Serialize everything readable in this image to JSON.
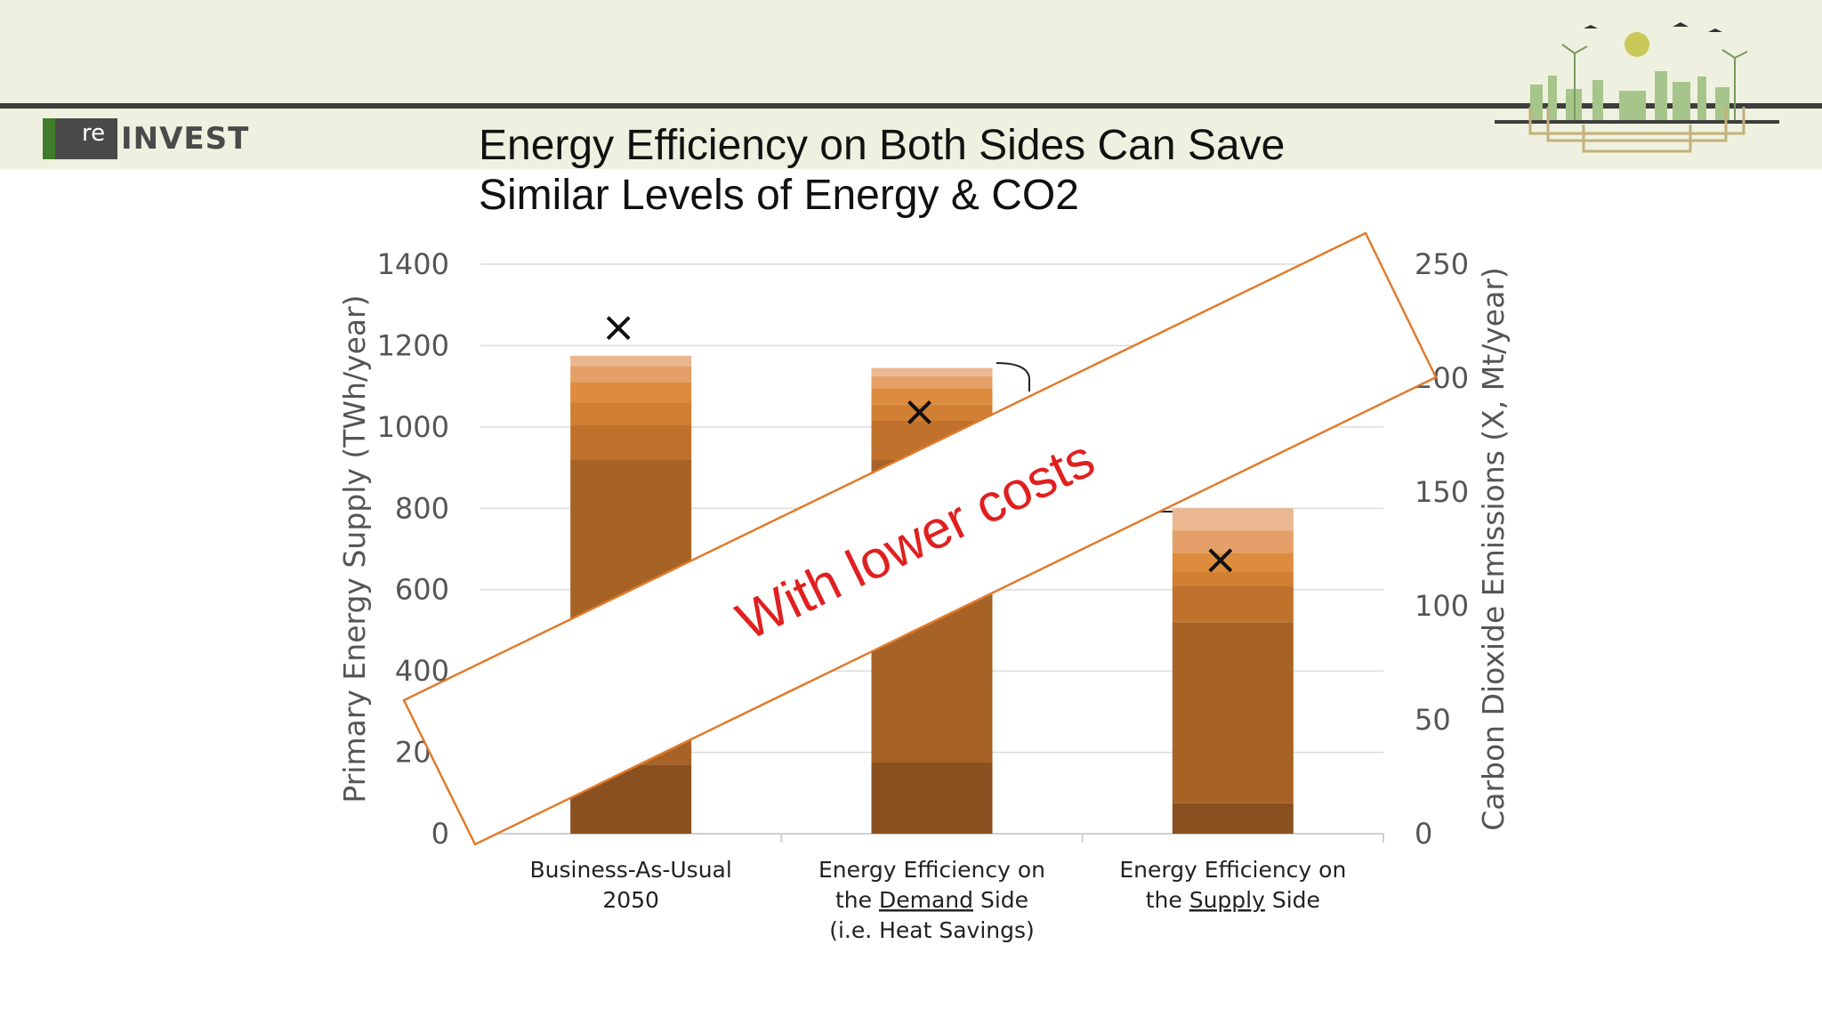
{
  "slide": {
    "title_line1": "Energy Efficiency on Both Sides Can Save",
    "title_line2": "Similar Levels of Energy & CO2",
    "logo_badge": "re",
    "logo_word": "INVEST",
    "overlay_text": "With lower costs"
  },
  "colors": {
    "header_band": "#eef1df",
    "overlay_border": "#e07b2c",
    "overlay_text": "#e02020",
    "marker": "#111111"
  },
  "chart_data": {
    "type": "bar",
    "stacked": true,
    "title": "",
    "categories": [
      [
        "Business-As-Usual",
        "2050"
      ],
      [
        "Energy Efficiency on",
        "the Demand Side",
        "(i.e. Heat Savings)"
      ],
      [
        "Energy Efficiency on",
        "the Supply Side"
      ]
    ],
    "category_underlined_words": [
      "",
      "Demand",
      "Supply"
    ],
    "ylabel": "Primary Energy Supply (TWh/year)",
    "y2label": "Carbon Dioxide Emissions (X, Mt/year)",
    "ylim": [
      0,
      1400
    ],
    "y2lim": [
      0,
      250
    ],
    "yticks": [
      "0",
      "200",
      "400",
      "600",
      "800",
      "1000",
      "1200",
      "1400"
    ],
    "y2ticks": [
      "0",
      "50",
      "100",
      "150",
      "200",
      "250"
    ],
    "grid": true,
    "series": [
      {
        "color": "#8a5020",
        "values": [
          170,
          175,
          75
        ]
      },
      {
        "color": "#a76325",
        "values": [
          750,
          745,
          445
        ]
      },
      {
        "color": "#c0712c",
        "values": [
          85,
          95,
          90
        ]
      },
      {
        "color": "#d17f32",
        "values": [
          55,
          40,
          35
        ]
      },
      {
        "color": "#dc8c3c",
        "values": [
          50,
          40,
          45
        ]
      },
      {
        "color": "#e4a068",
        "values": [
          40,
          30,
          55
        ]
      },
      {
        "color": "#eab791",
        "values": [
          25,
          20,
          55
        ]
      }
    ],
    "co2_markers": [
      222,
      185,
      120
    ]
  }
}
